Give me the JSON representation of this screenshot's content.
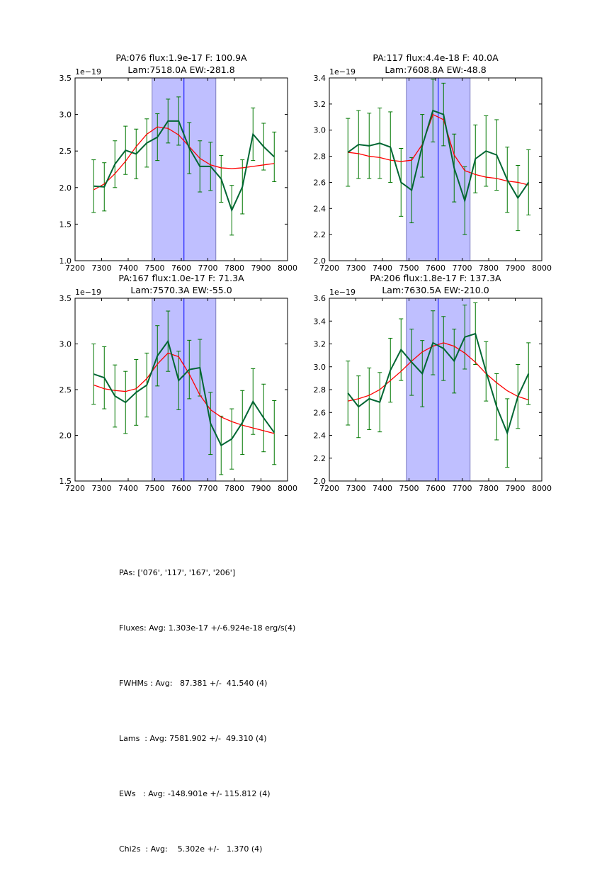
{
  "figure": {
    "summary": [
      "PAs: ['076', '117', '167', '206']",
      "Fluxes: Avg: 1.303e-17 +/-6.924e-18 erg/s(4)",
      "FWHMs : Avg:   87.381 +/-  41.540 (4)",
      "Lams  : Avg: 7581.902 +/-  49.310 (4)",
      "EWs   : Avg: -148.901e +/- 115.812 (4)",
      "Chi2s  : Avg:    5.302e +/-   1.370 (4)"
    ]
  },
  "chart_data": [
    {
      "type": "line",
      "title": [
        "PA:076 flux:1.9e-17 F: 100.9A",
        "Lam:7518.0A EW:-281.8"
      ],
      "xlabel": "",
      "ylabel": "",
      "y_offset_label": "1e−19",
      "xlim": [
        7200,
        8000
      ],
      "ylim": [
        1.0,
        3.5
      ],
      "xticks": [
        7200,
        7300,
        7400,
        7500,
        7600,
        7700,
        7800,
        7900,
        8000
      ],
      "yticks": [
        1.0,
        1.5,
        2.0,
        2.5,
        3.0,
        3.5
      ],
      "ytick_labels": [
        "1.0",
        "1.5",
        "2.0",
        "2.5",
        "3.0",
        "3.5"
      ],
      "shaded_region": [
        7490,
        7730
      ],
      "vline": 7610,
      "x": [
        7270,
        7310,
        7350,
        7390,
        7430,
        7470,
        7510,
        7550,
        7590,
        7630,
        7670,
        7710,
        7750,
        7790,
        7830,
        7870,
        7910,
        7950
      ],
      "series": [
        {
          "name": "data",
          "color": "#006633",
          "values": [
            2.02,
            2.01,
            2.32,
            2.51,
            2.46,
            2.61,
            2.69,
            2.91,
            2.91,
            2.54,
            2.29,
            2.29,
            2.12,
            1.69,
            2.01,
            2.73,
            2.56,
            2.42
          ],
          "errors": [
            0.36,
            0.33,
            0.32,
            0.33,
            0.34,
            0.33,
            0.32,
            0.3,
            0.33,
            0.35,
            0.35,
            0.33,
            0.32,
            0.34,
            0.37,
            0.36,
            0.32,
            0.34
          ]
        },
        {
          "name": "fit",
          "color": "#ff0000",
          "values": [
            1.97,
            2.05,
            2.19,
            2.36,
            2.56,
            2.73,
            2.83,
            2.81,
            2.72,
            2.56,
            2.4,
            2.31,
            2.27,
            2.26,
            2.27,
            2.29,
            2.31,
            2.33
          ]
        }
      ]
    },
    {
      "type": "line",
      "title": [
        "PA:117 flux:4.4e-18 F: 40.0A",
        "Lam:7608.8A EW:-48.8"
      ],
      "xlabel": "",
      "ylabel": "",
      "y_offset_label": "1e−19",
      "xlim": [
        7200,
        8000
      ],
      "ylim": [
        2.0,
        3.4
      ],
      "xticks": [
        7200,
        7300,
        7400,
        7500,
        7600,
        7700,
        7800,
        7900,
        8000
      ],
      "yticks": [
        2.0,
        2.2,
        2.4,
        2.6,
        2.8,
        3.0,
        3.2,
        3.4
      ],
      "ytick_labels": [
        "2.0",
        "2.2",
        "2.4",
        "2.6",
        "2.8",
        "3.0",
        "3.2",
        "3.4"
      ],
      "shaded_region": [
        7490,
        7730
      ],
      "vline": 7610,
      "x": [
        7270,
        7310,
        7350,
        7390,
        7430,
        7470,
        7510,
        7550,
        7590,
        7630,
        7670,
        7710,
        7750,
        7790,
        7830,
        7870,
        7910,
        7950
      ],
      "series": [
        {
          "name": "data",
          "color": "#006633",
          "values": [
            2.83,
            2.89,
            2.88,
            2.9,
            2.87,
            2.6,
            2.54,
            2.88,
            3.15,
            3.12,
            2.71,
            2.46,
            2.78,
            2.84,
            2.81,
            2.62,
            2.48,
            2.6
          ],
          "errors": [
            0.26,
            0.26,
            0.25,
            0.27,
            0.27,
            0.26,
            0.25,
            0.24,
            0.24,
            0.24,
            0.26,
            0.26,
            0.26,
            0.27,
            0.27,
            0.25,
            0.25,
            0.25
          ]
        },
        {
          "name": "fit",
          "color": "#ff0000",
          "values": [
            2.83,
            2.82,
            2.8,
            2.79,
            2.77,
            2.76,
            2.77,
            2.89,
            3.12,
            3.08,
            2.81,
            2.69,
            2.66,
            2.64,
            2.63,
            2.61,
            2.6,
            2.58
          ]
        }
      ]
    },
    {
      "type": "line",
      "title": [
        "PA:167 flux:1.0e-17 F: 71.3A",
        "Lam:7570.3A EW:-55.0"
      ],
      "xlabel": "",
      "ylabel": "",
      "y_offset_label": "1e−19",
      "xlim": [
        7200,
        8000
      ],
      "ylim": [
        1.5,
        3.5
      ],
      "xticks": [
        7200,
        7300,
        7400,
        7500,
        7600,
        7700,
        7800,
        7900,
        8000
      ],
      "yticks": [
        1.5,
        2.0,
        2.5,
        3.0,
        3.5
      ],
      "ytick_labels": [
        "1.5",
        "2.0",
        "2.5",
        "3.0",
        "3.5"
      ],
      "shaded_region": [
        7490,
        7730
      ],
      "vline": 7610,
      "x": [
        7270,
        7310,
        7350,
        7390,
        7430,
        7470,
        7510,
        7550,
        7590,
        7630,
        7670,
        7710,
        7750,
        7790,
        7830,
        7870,
        7910,
        7950
      ],
      "series": [
        {
          "name": "data",
          "color": "#006633",
          "values": [
            2.67,
            2.63,
            2.43,
            2.36,
            2.47,
            2.55,
            2.87,
            3.03,
            2.6,
            2.72,
            2.74,
            2.13,
            1.89,
            1.96,
            2.14,
            2.37,
            2.19,
            2.03
          ],
          "errors": [
            0.33,
            0.34,
            0.34,
            0.34,
            0.36,
            0.35,
            0.33,
            0.33,
            0.32,
            0.32,
            0.31,
            0.34,
            0.32,
            0.33,
            0.35,
            0.36,
            0.37,
            0.35
          ]
        },
        {
          "name": "fit",
          "color": "#ff0000",
          "values": [
            2.55,
            2.51,
            2.49,
            2.48,
            2.51,
            2.62,
            2.78,
            2.9,
            2.86,
            2.67,
            2.44,
            2.28,
            2.2,
            2.15,
            2.11,
            2.08,
            2.05,
            2.02
          ]
        }
      ]
    },
    {
      "type": "line",
      "title": [
        "PA:206 flux:1.8e-17 F: 137.3A",
        "Lam:7630.5A EW:-210.0"
      ],
      "xlabel": "",
      "ylabel": "",
      "y_offset_label": "1e−19",
      "xlim": [
        7200,
        8000
      ],
      "ylim": [
        2.0,
        3.6
      ],
      "xticks": [
        7200,
        7300,
        7400,
        7500,
        7600,
        7700,
        7800,
        7900,
        8000
      ],
      "yticks": [
        2.0,
        2.2,
        2.4,
        2.6,
        2.8,
        3.0,
        3.2,
        3.4,
        3.6
      ],
      "ytick_labels": [
        "2.0",
        "2.2",
        "2.4",
        "2.6",
        "2.8",
        "3.0",
        "3.2",
        "3.4",
        "3.6"
      ],
      "shaded_region": [
        7490,
        7730
      ],
      "vline": 7610,
      "x": [
        7270,
        7310,
        7350,
        7390,
        7430,
        7470,
        7510,
        7550,
        7590,
        7630,
        7670,
        7710,
        7750,
        7790,
        7830,
        7870,
        7910,
        7950
      ],
      "series": [
        {
          "name": "data",
          "color": "#006633",
          "values": [
            2.77,
            2.65,
            2.72,
            2.69,
            2.97,
            3.15,
            3.04,
            2.94,
            3.21,
            3.16,
            3.05,
            3.26,
            3.29,
            2.96,
            2.65,
            2.42,
            2.74,
            2.94
          ],
          "errors": [
            0.28,
            0.27,
            0.27,
            0.26,
            0.28,
            0.27,
            0.29,
            0.29,
            0.28,
            0.28,
            0.28,
            0.28,
            0.27,
            0.26,
            0.29,
            0.3,
            0.28,
            0.27
          ]
        },
        {
          "name": "fit",
          "color": "#ff0000",
          "values": [
            2.7,
            2.72,
            2.75,
            2.8,
            2.88,
            2.96,
            3.05,
            3.13,
            3.18,
            3.21,
            3.18,
            3.12,
            3.04,
            2.94,
            2.86,
            2.79,
            2.74,
            2.71
          ]
        }
      ]
    }
  ]
}
